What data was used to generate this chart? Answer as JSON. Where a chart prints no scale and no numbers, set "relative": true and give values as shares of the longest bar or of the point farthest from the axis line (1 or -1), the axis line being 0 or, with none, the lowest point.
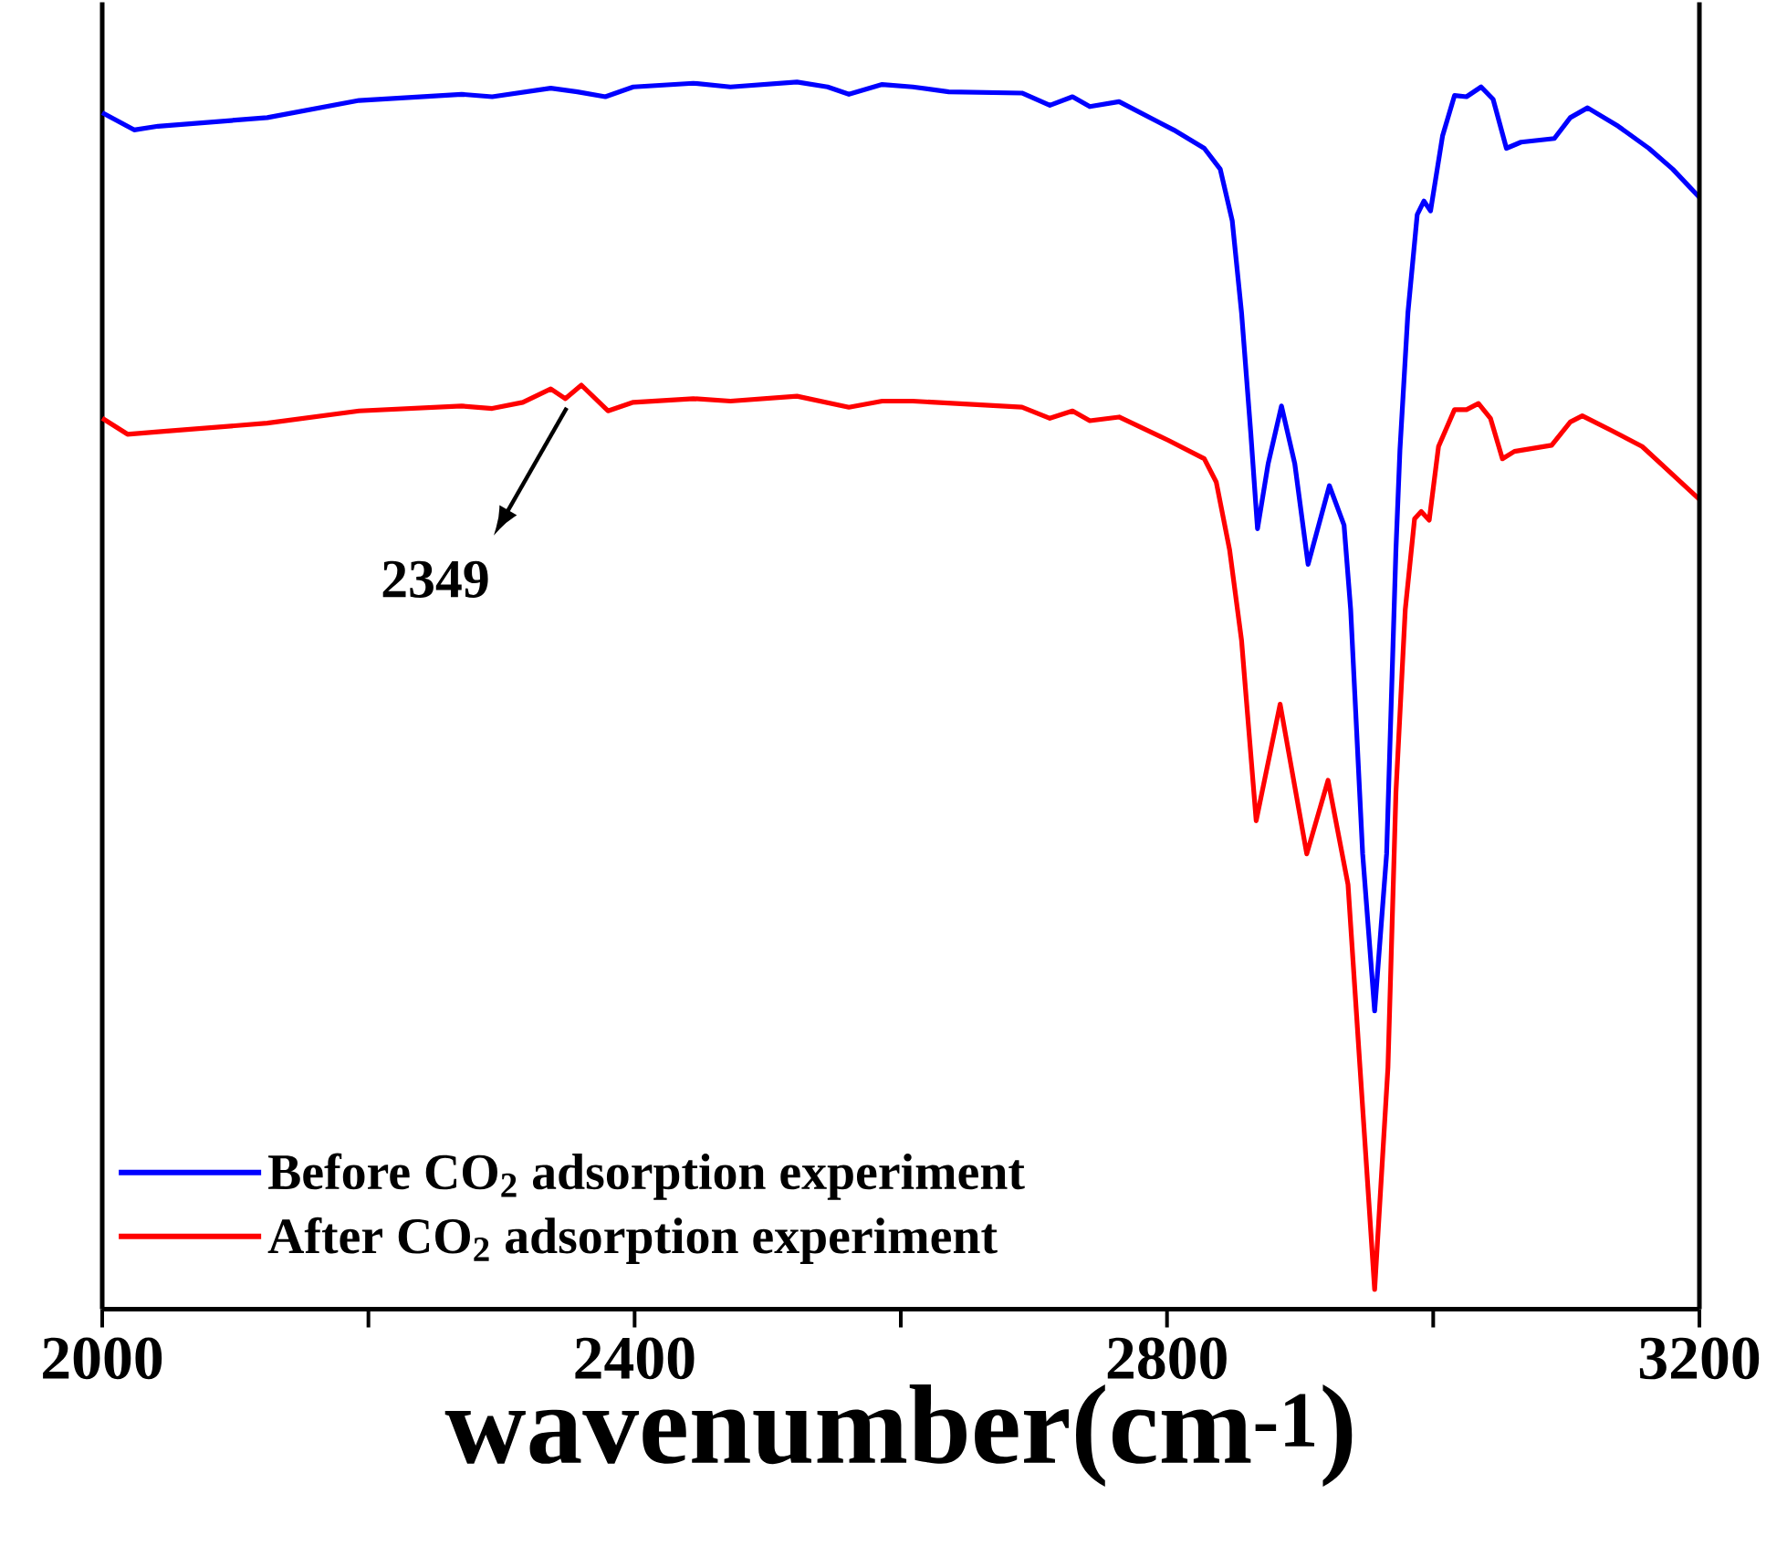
{
  "chart_data": {
    "type": "line",
    "relative": true,
    "xlabel": "wavenumber(cm$^{-1}$)",
    "xlim": [
      2000,
      3200
    ],
    "xticks": [
      2000,
      {
        "value": 2200,
        "label": null
      },
      2400,
      {
        "value": 2600,
        "label": null
      },
      2800,
      {
        "value": 3000,
        "label": null
      },
      3200
    ],
    "legend": "bottom left",
    "marker": "none",
    "line_style": "solid",
    "annotations": [
      {
        "text": "2349",
        "x": 2349,
        "y": 0.742
      }
    ],
    "series": [
      {
        "name": "Before CO$_{2}$ adsorption experiment",
        "color": "#0000ff",
        "x": [
          2000,
          2024,
          2042,
          2124,
          2193,
          2270,
          2293,
          2337,
          2357,
          2378,
          2399,
          2444,
          2472,
          2522,
          2545,
          2561,
          2586,
          2609,
          2636,
          2691,
          2712,
          2729,
          2742,
          2764,
          2805,
          2828,
          2840,
          2849,
          2856,
          2863,
          2868,
          2876,
          2886,
          2896,
          2906,
          2922,
          2933,
          2938,
          2947,
          2956,
          2965,
          2972,
          2975,
          2981,
          2988,
          2993,
          2998,
          3007,
          3016,
          3025,
          3036,
          3045,
          3055,
          3066,
          3091,
          3103,
          3116,
          3139,
          3162,
          3180,
          3200
        ],
        "values": [
          0.975,
          0.961,
          0.964,
          0.971,
          0.985,
          0.99,
          0.988,
          0.995,
          0.992,
          0.988,
          0.996,
          0.999,
          0.996,
          1.0,
          0.996,
          0.99,
          0.998,
          0.996,
          0.992,
          0.991,
          0.981,
          0.988,
          0.98,
          0.984,
          0.961,
          0.946,
          0.929,
          0.887,
          0.812,
          0.713,
          0.636,
          0.689,
          0.736,
          0.689,
          0.607,
          0.671,
          0.639,
          0.57,
          0.371,
          0.243,
          0.371,
          0.619,
          0.7,
          0.812,
          0.892,
          0.903,
          0.895,
          0.956,
          0.989,
          0.988,
          0.996,
          0.986,
          0.946,
          0.951,
          0.954,
          0.971,
          0.979,
          0.964,
          0.946,
          0.929,
          0.906
        ]
      },
      {
        "name": "After CO$_{2}$ adsorption experiment",
        "color": "#ff0000",
        "x": [
          2000,
          2019,
          2042,
          2124,
          2193,
          2270,
          2293,
          2316,
          2337,
          2348,
          2360,
          2380,
          2399,
          2444,
          2472,
          2522,
          2561,
          2586,
          2609,
          2691,
          2712,
          2729,
          2742,
          2764,
          2801,
          2828,
          2837,
          2847,
          2856,
          2867,
          2885,
          2905,
          2921,
          2936,
          2945,
          2956,
          2966,
          2972,
          2979,
          2986,
          2991,
          2997,
          3004,
          3016,
          3025,
          3034,
          3043,
          3052,
          3061,
          3089,
          3103,
          3112,
          3134,
          3157,
          3192,
          3200
        ],
        "values": [
          0.726,
          0.713,
          0.715,
          0.722,
          0.732,
          0.736,
          0.734,
          0.739,
          0.75,
          0.742,
          0.753,
          0.732,
          0.739,
          0.742,
          0.74,
          0.744,
          0.735,
          0.74,
          0.74,
          0.735,
          0.726,
          0.732,
          0.724,
          0.727,
          0.708,
          0.693,
          0.674,
          0.619,
          0.545,
          0.398,
          0.493,
          0.371,
          0.431,
          0.346,
          0.197,
          0.016,
          0.197,
          0.421,
          0.57,
          0.644,
          0.65,
          0.643,
          0.703,
          0.733,
          0.733,
          0.738,
          0.726,
          0.693,
          0.699,
          0.704,
          0.723,
          0.728,
          0.716,
          0.703,
          0.668,
          0.66
        ]
      }
    ]
  }
}
